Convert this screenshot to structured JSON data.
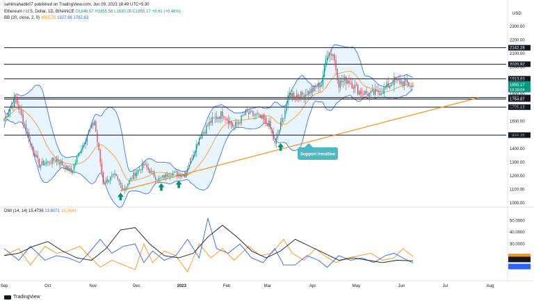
{
  "header": {
    "publisher": "sahilmahadik07 published on TradingView.com, Jun 09, 2023 18:49 UTC+5:30",
    "symbol_line": "Ethereum / U.S. Dollar, 1D, BINANCE",
    "ohlc": "O1846.57 H1855.56 L1830.05 C1855.17 +8.61 (+0.46%)",
    "bb_label": "BB (20, close, 2, 0)",
    "bb_values": [
      "1855.25",
      "1927.86",
      "1782.63"
    ],
    "dmi_label": "DMI (14, 14)",
    "dmi_values": [
      "15.4736",
      "13.6071",
      "19.2643"
    ],
    "currency": "USD"
  },
  "footer": {
    "brand": "TradingView"
  },
  "annotation": {
    "text": "Support trendline"
  },
  "colors": {
    "bull": "#089981",
    "bear": "#f23645",
    "bb_basis": "#f7931a",
    "bb_band": "#2962ff",
    "trendline": "#f7931a",
    "plus_di": "#f7931a",
    "minus_di": "#2962ff",
    "adx": "#131722",
    "callout": "#4fb8c0",
    "arrow": "#0b8f6c",
    "price_tag": "#089981"
  },
  "chart_data": [
    {
      "type": "candlestick",
      "currency": "USD",
      "y_range": [
        980,
        2340
      ],
      "y_ticks": [
        1000,
        1100,
        1200,
        1300,
        1400,
        1500,
        1600,
        1700,
        1800,
        1900,
        2000,
        2100,
        2200,
        2300
      ],
      "y_tick_labels": [
        "1000.00",
        "1100.00",
        "1200.00",
        "1300.00",
        "1400.00",
        "1500.00",
        "1600.00",
        "1700.00",
        "1800.00",
        "1900.00",
        "2000.00",
        "2100.00",
        "2200.00",
        "2300.00"
      ],
      "x_labels": [
        "Sep",
        "Oct",
        "Nov",
        "Dec",
        "2023",
        "Feb",
        "Mar",
        "Apr",
        "May",
        "Jun",
        "Jul",
        "Aug"
      ],
      "x_label_positions": [
        0,
        30,
        61,
        91,
        122,
        153,
        181,
        212,
        242,
        273,
        303,
        334
      ],
      "horizontal_levels": [
        {
          "value": 2142.28,
          "label": "2142.28"
        },
        {
          "value": 2020.92,
          "label": "2020.92"
        },
        {
          "value": 1913.83,
          "label": "1913.83"
        },
        {
          "value": 1775.83,
          "label": "1775.83"
        },
        {
          "value": 1764.87,
          "label": "1764.87"
        },
        {
          "value": 1705.13,
          "label": "1705.13"
        },
        {
          "value": 1499.36,
          "label": "1499.36"
        }
      ],
      "last_price": {
        "value": 1855.17,
        "label": "1855.17",
        "countdown": "10:39:04"
      },
      "trendline": [
        {
          "day": 80,
          "value": 1090
        },
        {
          "day": 326,
          "value": 1775
        }
      ],
      "arrows": [
        {
          "day": 80,
          "value": 1030
        },
        {
          "day": 108,
          "value": 1100
        },
        {
          "day": 120,
          "value": 1120
        },
        {
          "day": 190,
          "value": 1395
        }
      ],
      "anchors": [
        {
          "day": 0,
          "value": 1620
        },
        {
          "day": 8,
          "value": 1770
        },
        {
          "day": 18,
          "value": 1440
        },
        {
          "day": 24,
          "value": 1280
        },
        {
          "day": 36,
          "value": 1320
        },
        {
          "day": 46,
          "value": 1230
        },
        {
          "day": 56,
          "value": 1480
        },
        {
          "day": 62,
          "value": 1600
        },
        {
          "day": 68,
          "value": 1150
        },
        {
          "day": 76,
          "value": 1200
        },
        {
          "day": 82,
          "value": 1100
        },
        {
          "day": 90,
          "value": 1220
        },
        {
          "day": 96,
          "value": 1280
        },
        {
          "day": 106,
          "value": 1170
        },
        {
          "day": 114,
          "value": 1220
        },
        {
          "day": 124,
          "value": 1210
        },
        {
          "day": 134,
          "value": 1480
        },
        {
          "day": 142,
          "value": 1600
        },
        {
          "day": 150,
          "value": 1660
        },
        {
          "day": 158,
          "value": 1560
        },
        {
          "day": 166,
          "value": 1660
        },
        {
          "day": 174,
          "value": 1640
        },
        {
          "day": 182,
          "value": 1580
        },
        {
          "day": 186,
          "value": 1430
        },
        {
          "day": 192,
          "value": 1650
        },
        {
          "day": 196,
          "value": 1800
        },
        {
          "day": 204,
          "value": 1790
        },
        {
          "day": 212,
          "value": 1830
        },
        {
          "day": 218,
          "value": 1880
        },
        {
          "day": 222,
          "value": 2110
        },
        {
          "day": 226,
          "value": 2100
        },
        {
          "day": 230,
          "value": 1880
        },
        {
          "day": 236,
          "value": 1910
        },
        {
          "day": 244,
          "value": 1820
        },
        {
          "day": 252,
          "value": 1800
        },
        {
          "day": 260,
          "value": 1830
        },
        {
          "day": 268,
          "value": 1900
        },
        {
          "day": 276,
          "value": 1880
        },
        {
          "day": 281,
          "value": 1855
        }
      ]
    },
    {
      "type": "line",
      "title": "DMI (14, 14)",
      "y_range": [
        2,
        58
      ],
      "y_ticks": [
        10,
        20,
        30,
        40,
        50
      ],
      "y_tick_labels": [
        "10.0000",
        "20.0000",
        "30.0000",
        "40.0000",
        "50.0000"
      ],
      "series": [
        {
          "name": "+DI",
          "color": "#f7931a",
          "points": [
            [
              0,
              20
            ],
            [
              10,
              26
            ],
            [
              18,
              12
            ],
            [
              28,
              28
            ],
            [
              36,
              22
            ],
            [
              44,
              24
            ],
            [
              52,
              28
            ],
            [
              58,
              20
            ],
            [
              66,
              10
            ],
            [
              74,
              16
            ],
            [
              82,
              12
            ],
            [
              90,
              8
            ],
            [
              96,
              30
            ],
            [
              102,
              14
            ],
            [
              110,
              24
            ],
            [
              118,
              20
            ],
            [
              126,
              6
            ],
            [
              134,
              30
            ],
            [
              142,
              18
            ],
            [
              150,
              26
            ],
            [
              158,
              16
            ],
            [
              168,
              28
            ],
            [
              176,
              20
            ],
            [
              184,
              22
            ],
            [
              192,
              34
            ],
            [
              198,
              22
            ],
            [
              206,
              16
            ],
            [
              214,
              26
            ],
            [
              220,
              20
            ],
            [
              228,
              14
            ],
            [
              236,
              18
            ],
            [
              244,
              20
            ],
            [
              252,
              22
            ],
            [
              260,
              16
            ],
            [
              268,
              18
            ],
            [
              274,
              26
            ],
            [
              281,
              19.26
            ]
          ]
        },
        {
          "name": "-DI",
          "color": "#2962ff",
          "points": [
            [
              0,
              26
            ],
            [
              10,
              16
            ],
            [
              18,
              28
            ],
            [
              28,
              16
            ],
            [
              36,
              20
            ],
            [
              44,
              18
            ],
            [
              52,
              14
            ],
            [
              58,
              22
            ],
            [
              66,
              34
            ],
            [
              74,
              22
            ],
            [
              82,
              28
            ],
            [
              90,
              30
            ],
            [
              96,
              14
            ],
            [
              102,
              24
            ],
            [
              110,
              16
            ],
            [
              118,
              20
            ],
            [
              126,
              34
            ],
            [
              134,
              18
            ],
            [
              140,
              52
            ],
            [
              146,
              26
            ],
            [
              154,
              22
            ],
            [
              162,
              30
            ],
            [
              170,
              18
            ],
            [
              178,
              14
            ],
            [
              186,
              26
            ],
            [
              192,
              12
            ],
            [
              200,
              12
            ],
            [
              208,
              20
            ],
            [
              216,
              16
            ],
            [
              222,
              10
            ],
            [
              230,
              20
            ],
            [
              238,
              16
            ],
            [
              246,
              18
            ],
            [
              254,
              14
            ],
            [
              262,
              20
            ],
            [
              268,
              22
            ],
            [
              274,
              18
            ],
            [
              281,
              13.61
            ]
          ]
        },
        {
          "name": "ADX",
          "color": "#131722",
          "points": [
            [
              0,
              20
            ],
            [
              10,
              22
            ],
            [
              20,
              28
            ],
            [
              30,
              32
            ],
            [
              40,
              24
            ],
            [
              50,
              18
            ],
            [
              60,
              16
            ],
            [
              70,
              26
            ],
            [
              80,
              42
            ],
            [
              90,
              44
            ],
            [
              100,
              30
            ],
            [
              110,
              20
            ],
            [
              120,
              18
            ],
            [
              130,
              22
            ],
            [
              140,
              36
            ],
            [
              150,
              46
            ],
            [
              160,
              36
            ],
            [
              170,
              24
            ],
            [
              180,
              18
            ],
            [
              190,
              24
            ],
            [
              200,
              34
            ],
            [
              210,
              28
            ],
            [
              220,
              22
            ],
            [
              230,
              16
            ],
            [
              240,
              18
            ],
            [
              250,
              16
            ],
            [
              260,
              14
            ],
            [
              270,
              16
            ],
            [
              281,
              15.47
            ]
          ]
        }
      ]
    }
  ]
}
